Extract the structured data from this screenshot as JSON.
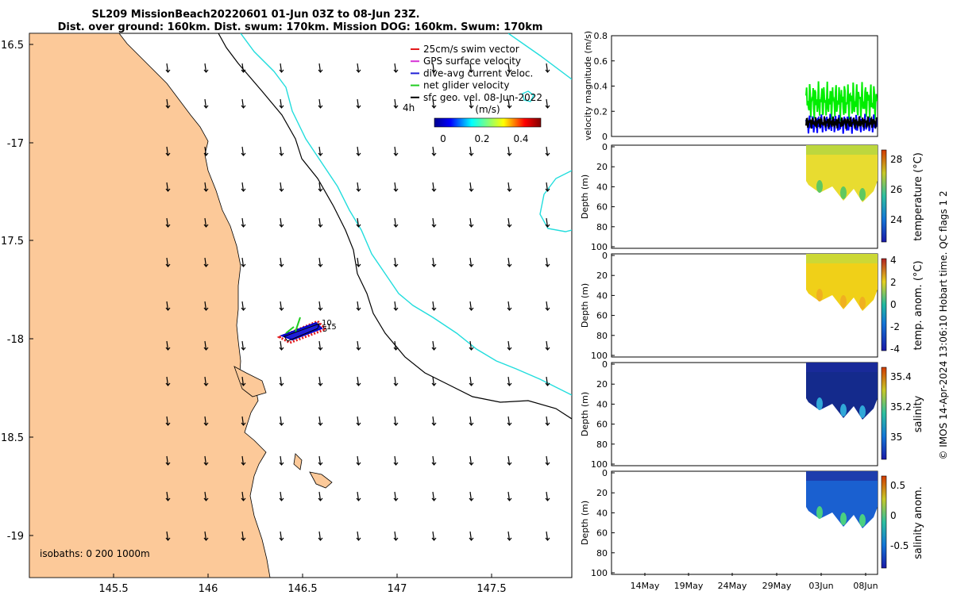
{
  "header": {
    "title_line1": "SL209 MissionBeach20220601 01-Jun 03Z to 08-Jun 23Z.",
    "title_line2": "Dist. over ground: 160km. Dist. swum: 170km. Mission DOG: 160km. Swum: 170km"
  },
  "map": {
    "lat_ticks": [
      "16.5",
      "-17",
      "17.5",
      "-18",
      "18.5",
      "-19"
    ],
    "lon_ticks": [
      "145.5",
      "146",
      "146.5",
      "147",
      "147.5"
    ],
    "isobaths_label": "isobaths: 0   200  1000m",
    "legend": [
      {
        "label": "25cm/s swim vector",
        "color": "#e31a1c"
      },
      {
        "label": "GPS surface velocity",
        "color": "#d633d6"
      },
      {
        "label": "dive-avg current veloc.",
        "color": "#1f1fd6"
      },
      {
        "label": "net glider velocity",
        "color": "#22cc22"
      },
      {
        "label": "sfc geo. vel. 08-Jun-2022",
        "color": "#000000"
      }
    ],
    "time_marker": "4h",
    "colorbar": {
      "label": "(m/s)",
      "ticks": [
        "0",
        "0.2",
        "0.4"
      ]
    },
    "track_labels": [
      "10",
      "5",
      "15"
    ],
    "colors": {
      "land": "#fcc999",
      "sea": "#ffffff",
      "contour_200": "#000000",
      "contour_1000": "#22dddd"
    }
  },
  "chart_data": [
    {
      "type": "line",
      "title": "",
      "ylabel": "velocity magnitude (m/s)",
      "ylim": [
        0,
        0.8
      ],
      "yticks": [
        "0",
        "0.2",
        "0.4",
        "0.6",
        "0.8"
      ],
      "series": [
        {
          "name": "net glider velocity",
          "color": "#00ee00",
          "range_approx": [
            0.1,
            0.45
          ]
        },
        {
          "name": "dive-avg current veloc.",
          "color": "#0000ff",
          "range_approx": [
            0.02,
            0.2
          ]
        },
        {
          "name": "sfc geo. vel.",
          "color": "#000000",
          "range_approx": [
            0.05,
            0.18
          ]
        }
      ]
    },
    {
      "type": "heatmap",
      "ylabel": "Depth (m)",
      "yticks": [
        "0",
        "20",
        "40",
        "60",
        "80",
        "100"
      ],
      "colorbar_label": "temperature (°C)",
      "colorbar_ticks": [
        "28",
        "26",
        "24"
      ]
    },
    {
      "type": "heatmap",
      "ylabel": "Depth (m)",
      "yticks": [
        "0",
        "20",
        "40",
        "60",
        "80",
        "100"
      ],
      "colorbar_label": "temp. anom. (°C)",
      "colorbar_ticks": [
        "4",
        "2",
        "0",
        "-2",
        "-4"
      ]
    },
    {
      "type": "heatmap",
      "ylabel": "Depth (m)",
      "yticks": [
        "0",
        "20",
        "40",
        "60",
        "80",
        "100"
      ],
      "colorbar_label": "salinity",
      "colorbar_ticks": [
        "35.4",
        "35.2",
        "35"
      ]
    },
    {
      "type": "heatmap",
      "ylabel": "Depth (m)",
      "yticks": [
        "0",
        "20",
        "40",
        "60",
        "80",
        "100"
      ],
      "colorbar_label": "salinity anom.",
      "colorbar_ticks": [
        "0.5",
        "0",
        "-0.5"
      ]
    }
  ],
  "time_axis": {
    "ticks": [
      "14May",
      "19May",
      "24May",
      "29May",
      "03Jun",
      "08Jun"
    ]
  },
  "footer": {
    "credit": "© IMOS 14-Apr-2024 13:06:10 Hobart time. QC flags 1  2"
  }
}
